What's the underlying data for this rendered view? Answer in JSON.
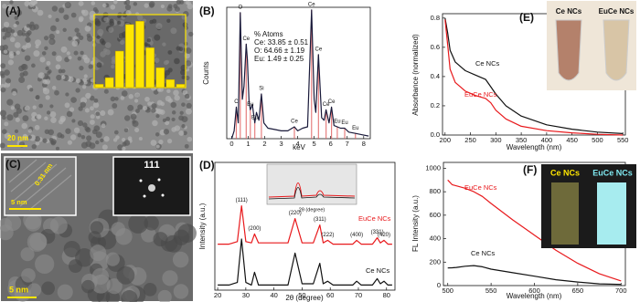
{
  "images": [
    {
      "label": "(A)",
      "scale_bar": "20 nm"
    },
    {
      "label": "(C)",
      "scale_bar": "5 nm",
      "inset_scale_bar": "5 nm",
      "lattice_spacing": "0.31 nm",
      "fft_label": "111"
    }
  ],
  "chart_data": [
    {
      "type": "bar",
      "categories": [
        null,
        null,
        null,
        null,
        null,
        null,
        null,
        null,
        null
      ],
      "values": [
        0.05,
        0.15,
        0.55,
        0.95,
        1.0,
        0.6,
        0.3,
        0.12,
        0.05
      ],
      "color": "#ffe600",
      "ylim": [
        0,
        1.1
      ]
    },
    {
      "type": "line",
      "label": "(B)",
      "xlabel": "keV",
      "ylabel": "Counts",
      "x": [
        0,
        0.15,
        0.28,
        0.4,
        0.52,
        0.65,
        0.75,
        0.88,
        0.95,
        1.05,
        1.13,
        1.25,
        1.4,
        1.5,
        1.65,
        1.8,
        1.95,
        2.2,
        2.6,
        3.0,
        3.4,
        3.8,
        4.0,
        4.3,
        4.6,
        4.84,
        5.0,
        5.1,
        5.26,
        5.45,
        5.6,
        5.72,
        5.9,
        6.05,
        6.2,
        6.4,
        6.6,
        6.85,
        7.1,
        7.5,
        7.9,
        8.3
      ],
      "series": [
        {
          "color": "#1a1a3a",
          "values": [
            0,
            6,
            24,
            12,
            96,
            30,
            40,
            72,
            60,
            28,
            22,
            26,
            12,
            20,
            14,
            34,
            12,
            8,
            7,
            6,
            6,
            9,
            6,
            8,
            9,
            98,
            30,
            20,
            64,
            16,
            14,
            22,
            12,
            24,
            10,
            9,
            8,
            8,
            5,
            4,
            3,
            2
          ]
        }
      ],
      "xlim": [
        -0.3,
        8.4
      ],
      "ylim": [
        0,
        100
      ],
      "xticks": [
        0,
        1,
        2,
        3,
        4,
        5,
        6,
        7,
        8
      ],
      "legend_text": [
        "% Atoms",
        "Ce: 33.85 ± 0.51",
        "O: 64.66 ± 1.19",
        "Eu: 1.49 ± 0.25"
      ],
      "peak_color": "#e06060",
      "peak_labels": [
        {
          "label": "C",
          "x": 0.28
        },
        {
          "label": "O",
          "x": 0.52
        },
        {
          "label": "Ce",
          "x": 0.88
        },
        {
          "label": "Eu",
          "x": 1.13
        },
        {
          "label": "Eu",
          "x": 1.4
        },
        {
          "label": "Si",
          "x": 1.8
        },
        {
          "label": "Ce",
          "x": 3.8
        },
        {
          "label": "Ce",
          "x": 4.84
        },
        {
          "label": "Ce",
          "x": 5.26
        },
        {
          "label": "Ce",
          "x": 5.72
        },
        {
          "label": "Ce",
          "x": 6.05
        },
        {
          "label": "Eu",
          "x": 6.4
        },
        {
          "label": "Eu",
          "x": 6.85
        },
        {
          "label": "Eu",
          "x": 7.5
        }
      ]
    },
    {
      "type": "line",
      "label": "(D)",
      "xlabel": "2θ (degree)",
      "ylabel": "Intensity (a.u.)",
      "inset_xlabel": "2θ (degree)",
      "x": [
        20,
        24,
        27,
        28.5,
        30,
        32,
        33.1,
        34.5,
        45,
        47.5,
        50,
        54,
        56.3,
        57.5,
        59.1,
        61,
        68,
        69.4,
        71,
        75,
        76.7,
        77.8,
        79.1,
        80.5,
        82
      ],
      "series": [
        {
          "name": "EuCe NCs",
          "color": "#e8191c",
          "values": [
            36,
            36,
            38,
            66,
            38,
            37,
            44,
            37,
            37,
            56,
            37,
            37,
            51,
            37,
            39,
            36,
            36,
            39,
            36,
            36,
            41,
            37,
            39,
            36,
            36
          ]
        },
        {
          "name": "Ce NCs",
          "color": "#111111",
          "values": [
            4,
            4,
            6,
            40,
            6,
            4,
            14,
            4,
            4,
            29,
            5,
            5,
            21,
            5,
            7,
            4,
            4,
            7,
            4,
            4,
            9,
            5,
            7,
            4,
            4
          ]
        }
      ],
      "xlim": [
        19,
        83
      ],
      "ylim": [
        0,
        100
      ],
      "xticks": [
        20,
        30,
        40,
        50,
        60,
        70,
        80
      ],
      "peak_labels": [
        {
          "label": "(111)",
          "x": 28.5
        },
        {
          "label": "(200)",
          "x": 33.1
        },
        {
          "label": "(220)",
          "x": 47.5
        },
        {
          "label": "(311)",
          "x": 56.3
        },
        {
          "label": "(222)",
          "x": 59.1
        },
        {
          "label": "(400)",
          "x": 69.4
        },
        {
          "label": "(331)",
          "x": 76.7
        },
        {
          "label": "(420)",
          "x": 79.1
        }
      ]
    },
    {
      "type": "line",
      "label": "(E)",
      "xlabel": "Wavelength (nm)",
      "ylabel": "Absorbance (normalized)",
      "photo_labels": [
        "Ce NCs",
        "EuCe NCs"
      ],
      "x": [
        200,
        205,
        210,
        220,
        240,
        260,
        280,
        290,
        300,
        320,
        350,
        400,
        450,
        500,
        550
      ],
      "series": [
        {
          "name": "Ce NCs",
          "color": "#111111",
          "values": [
            0.8,
            0.7,
            0.58,
            0.5,
            0.44,
            0.41,
            0.38,
            0.33,
            0.28,
            0.2,
            0.13,
            0.07,
            0.04,
            0.02,
            0.01
          ]
        },
        {
          "name": "EuCe NCs",
          "color": "#e8191c",
          "values": [
            0.79,
            0.62,
            0.45,
            0.36,
            0.3,
            0.27,
            0.25,
            0.22,
            0.17,
            0.11,
            0.06,
            0.03,
            0.015,
            0.005,
            0.0
          ]
        }
      ],
      "xlim": [
        195,
        555
      ],
      "ylim": [
        0,
        0.83
      ],
      "xticks": [
        200,
        250,
        300,
        350,
        400,
        450,
        500,
        550
      ],
      "yticks": [
        {
          "value": 0,
          "label": "0.0"
        },
        0.2,
        0.4,
        0.6,
        0.8
      ]
    },
    {
      "type": "line",
      "label": "(F)",
      "xlabel": "Wavelength (nm)",
      "ylabel": "FL Intensity (a.u.)",
      "photo_labels": [
        "Ce NCs",
        "EuCe NCs"
      ],
      "x": [
        500,
        505,
        510,
        520,
        530,
        540,
        550,
        575,
        600,
        625,
        650,
        675,
        700
      ],
      "series": [
        {
          "name": "EuCe NCs",
          "color": "#e8191c",
          "values": [
            900,
            860,
            850,
            830,
            800,
            760,
            700,
            560,
            430,
            300,
            190,
            100,
            40
          ]
        },
        {
          "name": "Ce NCs",
          "color": "#111111",
          "values": [
            150,
            152,
            155,
            165,
            170,
            160,
            140,
            110,
            80,
            50,
            30,
            15,
            10
          ]
        }
      ],
      "xlim": [
        495,
        705
      ],
      "ylim": [
        0,
        1050
      ],
      "xticks": [
        500,
        550,
        600,
        650,
        700
      ],
      "yticks": [
        0,
        200,
        400,
        600,
        800,
        1000
      ]
    }
  ]
}
